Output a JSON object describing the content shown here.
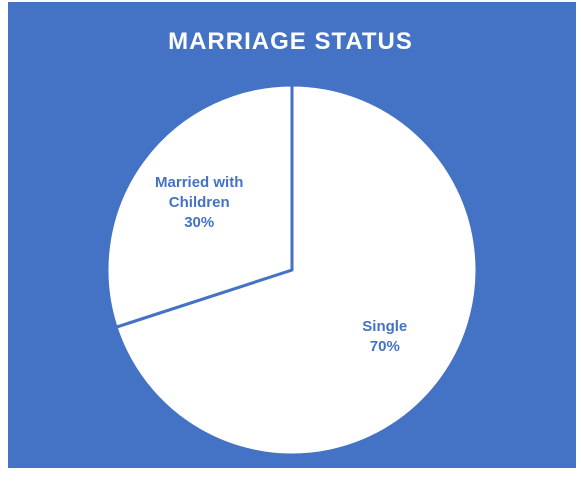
{
  "chart_data": {
    "type": "pie",
    "title": "MARRIAGE STATUS",
    "categories": [
      "Single",
      "Married with Children"
    ],
    "values": [
      70,
      30
    ],
    "value_labels": [
      "70%",
      "30%"
    ],
    "color": "#ffffff",
    "edge_color": "#4472c4",
    "background": "#4472c4"
  }
}
